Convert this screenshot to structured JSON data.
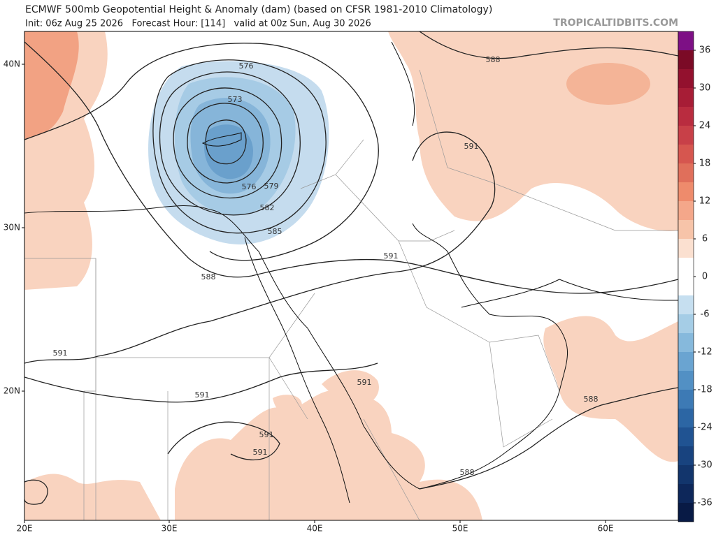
{
  "header": {
    "title": "ECMWF 500mb Geopotential Height & Anomaly (dam) (based on CFSR 1981-2010 Climatology)",
    "subtitle": "Init: 06z Aug 25 2026   Forecast Hour: [114]   valid at 00z Sun, Aug 30 2026",
    "watermark": "TROPICALTIDBITS.COM"
  },
  "map": {
    "lat_labels": [
      "40N",
      "30N",
      "20N"
    ],
    "lon_labels": [
      "20E",
      "30E",
      "40E",
      "50E",
      "60E"
    ],
    "contour_labels": [
      "576",
      "573",
      "576",
      "579",
      "582",
      "585",
      "588",
      "588",
      "591",
      "591",
      "591",
      "591",
      "591",
      "591",
      "591",
      "588",
      "588"
    ]
  },
  "colorbar": {
    "ticks": [
      36,
      30,
      24,
      18,
      12,
      6,
      0,
      -6,
      -12,
      -18,
      -24,
      -30,
      -36
    ]
  }
}
